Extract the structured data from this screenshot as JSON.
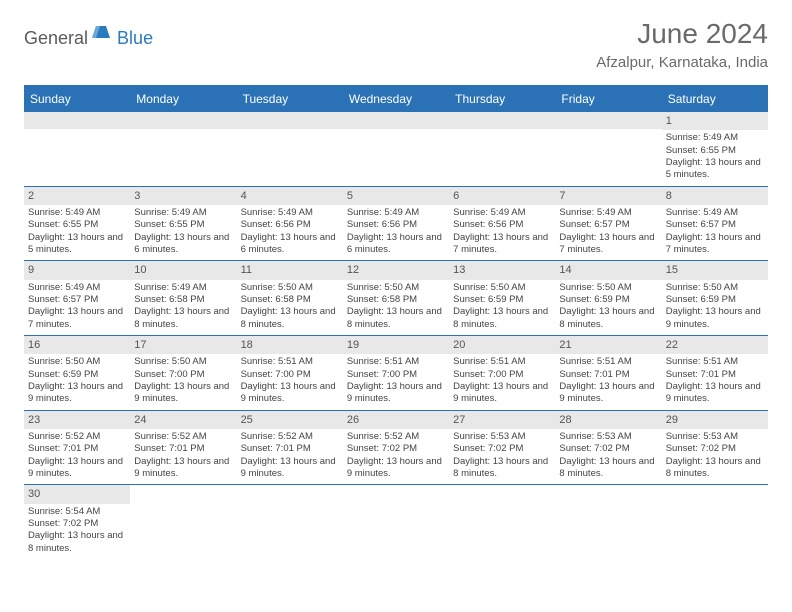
{
  "brand": {
    "part1": "General",
    "part2": "Blue"
  },
  "title": "June 2024",
  "location": "Afzalpur, Karnataka, India",
  "colors": {
    "header_bg": "#2a72b5",
    "daynum_bg": "#e8e8e8",
    "text_dark": "#5a5a5a",
    "text_blue": "#2a7ac0"
  },
  "day_names": [
    "Sunday",
    "Monday",
    "Tuesday",
    "Wednesday",
    "Thursday",
    "Friday",
    "Saturday"
  ],
  "weeks": [
    [
      null,
      null,
      null,
      null,
      null,
      null,
      {
        "d": "1",
        "sr": "Sunrise: 5:49 AM",
        "ss": "Sunset: 6:55 PM",
        "dl": "Daylight: 13 hours and 5 minutes."
      }
    ],
    [
      {
        "d": "2",
        "sr": "Sunrise: 5:49 AM",
        "ss": "Sunset: 6:55 PM",
        "dl": "Daylight: 13 hours and 5 minutes."
      },
      {
        "d": "3",
        "sr": "Sunrise: 5:49 AM",
        "ss": "Sunset: 6:55 PM",
        "dl": "Daylight: 13 hours and 6 minutes."
      },
      {
        "d": "4",
        "sr": "Sunrise: 5:49 AM",
        "ss": "Sunset: 6:56 PM",
        "dl": "Daylight: 13 hours and 6 minutes."
      },
      {
        "d": "5",
        "sr": "Sunrise: 5:49 AM",
        "ss": "Sunset: 6:56 PM",
        "dl": "Daylight: 13 hours and 6 minutes."
      },
      {
        "d": "6",
        "sr": "Sunrise: 5:49 AM",
        "ss": "Sunset: 6:56 PM",
        "dl": "Daylight: 13 hours and 7 minutes."
      },
      {
        "d": "7",
        "sr": "Sunrise: 5:49 AM",
        "ss": "Sunset: 6:57 PM",
        "dl": "Daylight: 13 hours and 7 minutes."
      },
      {
        "d": "8",
        "sr": "Sunrise: 5:49 AM",
        "ss": "Sunset: 6:57 PM",
        "dl": "Daylight: 13 hours and 7 minutes."
      }
    ],
    [
      {
        "d": "9",
        "sr": "Sunrise: 5:49 AM",
        "ss": "Sunset: 6:57 PM",
        "dl": "Daylight: 13 hours and 7 minutes."
      },
      {
        "d": "10",
        "sr": "Sunrise: 5:49 AM",
        "ss": "Sunset: 6:58 PM",
        "dl": "Daylight: 13 hours and 8 minutes."
      },
      {
        "d": "11",
        "sr": "Sunrise: 5:50 AM",
        "ss": "Sunset: 6:58 PM",
        "dl": "Daylight: 13 hours and 8 minutes."
      },
      {
        "d": "12",
        "sr": "Sunrise: 5:50 AM",
        "ss": "Sunset: 6:58 PM",
        "dl": "Daylight: 13 hours and 8 minutes."
      },
      {
        "d": "13",
        "sr": "Sunrise: 5:50 AM",
        "ss": "Sunset: 6:59 PM",
        "dl": "Daylight: 13 hours and 8 minutes."
      },
      {
        "d": "14",
        "sr": "Sunrise: 5:50 AM",
        "ss": "Sunset: 6:59 PM",
        "dl": "Daylight: 13 hours and 8 minutes."
      },
      {
        "d": "15",
        "sr": "Sunrise: 5:50 AM",
        "ss": "Sunset: 6:59 PM",
        "dl": "Daylight: 13 hours and 9 minutes."
      }
    ],
    [
      {
        "d": "16",
        "sr": "Sunrise: 5:50 AM",
        "ss": "Sunset: 6:59 PM",
        "dl": "Daylight: 13 hours and 9 minutes."
      },
      {
        "d": "17",
        "sr": "Sunrise: 5:50 AM",
        "ss": "Sunset: 7:00 PM",
        "dl": "Daylight: 13 hours and 9 minutes."
      },
      {
        "d": "18",
        "sr": "Sunrise: 5:51 AM",
        "ss": "Sunset: 7:00 PM",
        "dl": "Daylight: 13 hours and 9 minutes."
      },
      {
        "d": "19",
        "sr": "Sunrise: 5:51 AM",
        "ss": "Sunset: 7:00 PM",
        "dl": "Daylight: 13 hours and 9 minutes."
      },
      {
        "d": "20",
        "sr": "Sunrise: 5:51 AM",
        "ss": "Sunset: 7:00 PM",
        "dl": "Daylight: 13 hours and 9 minutes."
      },
      {
        "d": "21",
        "sr": "Sunrise: 5:51 AM",
        "ss": "Sunset: 7:01 PM",
        "dl": "Daylight: 13 hours and 9 minutes."
      },
      {
        "d": "22",
        "sr": "Sunrise: 5:51 AM",
        "ss": "Sunset: 7:01 PM",
        "dl": "Daylight: 13 hours and 9 minutes."
      }
    ],
    [
      {
        "d": "23",
        "sr": "Sunrise: 5:52 AM",
        "ss": "Sunset: 7:01 PM",
        "dl": "Daylight: 13 hours and 9 minutes."
      },
      {
        "d": "24",
        "sr": "Sunrise: 5:52 AM",
        "ss": "Sunset: 7:01 PM",
        "dl": "Daylight: 13 hours and 9 minutes."
      },
      {
        "d": "25",
        "sr": "Sunrise: 5:52 AM",
        "ss": "Sunset: 7:01 PM",
        "dl": "Daylight: 13 hours and 9 minutes."
      },
      {
        "d": "26",
        "sr": "Sunrise: 5:52 AM",
        "ss": "Sunset: 7:02 PM",
        "dl": "Daylight: 13 hours and 9 minutes."
      },
      {
        "d": "27",
        "sr": "Sunrise: 5:53 AM",
        "ss": "Sunset: 7:02 PM",
        "dl": "Daylight: 13 hours and 8 minutes."
      },
      {
        "d": "28",
        "sr": "Sunrise: 5:53 AM",
        "ss": "Sunset: 7:02 PM",
        "dl": "Daylight: 13 hours and 8 minutes."
      },
      {
        "d": "29",
        "sr": "Sunrise: 5:53 AM",
        "ss": "Sunset: 7:02 PM",
        "dl": "Daylight: 13 hours and 8 minutes."
      }
    ],
    [
      {
        "d": "30",
        "sr": "Sunrise: 5:54 AM",
        "ss": "Sunset: 7:02 PM",
        "dl": "Daylight: 13 hours and 8 minutes."
      },
      null,
      null,
      null,
      null,
      null,
      null
    ]
  ]
}
